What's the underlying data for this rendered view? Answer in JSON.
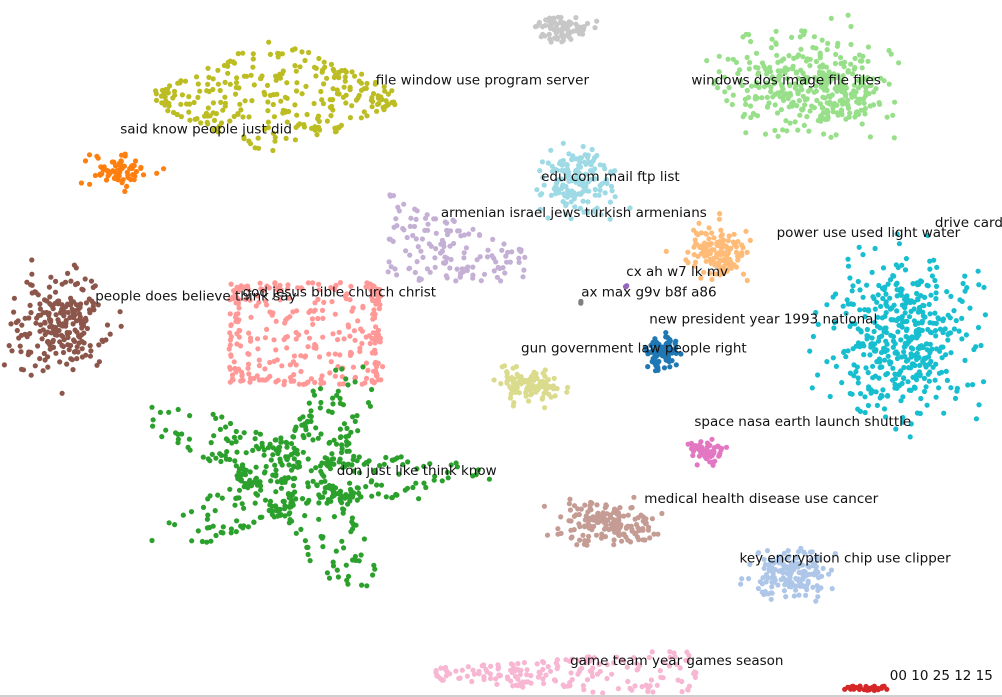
{
  "chart_data": {
    "type": "scatter",
    "title": "",
    "xlabel": "",
    "ylabel": "",
    "grid": false,
    "legend": "none",
    "xlim": [
      0,
      100
    ],
    "ylim": [
      0,
      70
    ],
    "clusters": [
      {
        "label": "",
        "color": "#c7c7c7",
        "center": [
          56.0,
          67.2
        ],
        "spread": [
          4.2,
          2.0
        ],
        "count": 90,
        "shape": "blob"
      },
      {
        "label": "file window use program server",
        "color": "#bcbd22",
        "center": [
          27.5,
          60.2
        ],
        "spread": [
          12.0,
          6.0
        ],
        "count": 290,
        "shape": "diamond"
      },
      {
        "label": "windows dos image file files",
        "color": "#98df8a",
        "center": [
          81.0,
          61.5
        ],
        "spread": [
          13.0,
          7.5
        ],
        "count": 380,
        "shape": "blob"
      },
      {
        "label": "said know people just did",
        "color": "#ff7f0e",
        "center": [
          12.0,
          52.8
        ],
        "spread": [
          5.0,
          2.8
        ],
        "count": 70,
        "shape": "star"
      },
      {
        "label": "edu com mail ftp list",
        "color": "#9edae5",
        "center": [
          57.8,
          51.8
        ],
        "spread": [
          5.5,
          5.0
        ],
        "count": 160,
        "shape": "blob"
      },
      {
        "label": "armenian israel jews turkish armenians",
        "color": "#c5b0d5",
        "center": [
          45.5,
          44.8
        ],
        "spread": [
          7.0,
          4.5
        ],
        "count": 140,
        "shape": "tri"
      },
      {
        "label": "power use used light water",
        "color": "#ffbb78",
        "center": [
          71.5,
          44.5
        ],
        "spread": [
          5.0,
          4.2
        ],
        "count": 140,
        "shape": "blob"
      },
      {
        "label": "drive card",
        "color": "#17becf",
        "center": [
          90.0,
          36.5
        ],
        "spread": [
          11.5,
          12.5
        ],
        "count": 450,
        "shape": "blob"
      },
      {
        "label": "people does believe think say",
        "color": "#8c564b",
        "center": [
          6.0,
          37.5
        ],
        "spread": [
          7.0,
          8.0
        ],
        "count": 230,
        "shape": "blob"
      },
      {
        "label": "god jesus bible church christ",
        "color": "#ff9896",
        "center": [
          30.5,
          36.5
        ],
        "spread": [
          7.5,
          5.0
        ],
        "count": 300,
        "shape": "frame"
      },
      {
        "label": "cx ah w7 lk mv",
        "color": "#9467bd",
        "center": [
          62.5,
          41.3
        ],
        "spread": [
          0.4,
          0.3
        ],
        "count": 3,
        "shape": "blob"
      },
      {
        "label": "ax max g9v b8f a86",
        "color": "#7f7f7f",
        "center": [
          58.0,
          39.7
        ],
        "spread": [
          0.3,
          0.3
        ],
        "count": 2,
        "shape": "blob"
      },
      {
        "label": "new president year 1993 national",
        "color": "#1f77b4",
        "center": [
          66.0,
          34.6
        ],
        "spread": [
          2.5,
          2.8
        ],
        "count": 90,
        "shape": "blob"
      },
      {
        "label": "gun government law people right",
        "color": "#dbdb8d",
        "center": [
          53.0,
          31.5
        ],
        "spread": [
          5.0,
          2.8
        ],
        "count": 110,
        "shape": "blob"
      },
      {
        "label": "space nasa earth launch shuttle",
        "color": "#e377c2",
        "center": [
          70.5,
          24.6
        ],
        "spread": [
          3.0,
          1.8
        ],
        "count": 60,
        "shape": "blob"
      },
      {
        "label": "don just like think know",
        "color": "#2ca02c",
        "center": [
          30.0,
          22.0
        ],
        "spread": [
          19.0,
          12.0
        ],
        "count": 520,
        "shape": "star"
      },
      {
        "label": "medical health disease use cancer",
        "color": "#c49c94",
        "center": [
          60.5,
          17.5
        ],
        "spread": [
          7.5,
          3.2
        ],
        "count": 170,
        "shape": "blob"
      },
      {
        "label": "key encryption chip use clipper",
        "color": "#aec7e8",
        "center": [
          79.0,
          12.5
        ],
        "spread": [
          6.0,
          3.8
        ],
        "count": 170,
        "shape": "blob"
      },
      {
        "label": "game team year games season",
        "color": "#f7b6d2",
        "center": [
          56.5,
          2.3
        ],
        "spread": [
          13.0,
          2.6
        ],
        "count": 180,
        "shape": "wedge"
      },
      {
        "label": "00 10 25 12 15",
        "color": "#d62728",
        "center": [
          86.5,
          0.9
        ],
        "spread": [
          3.0,
          0.4
        ],
        "count": 30,
        "shape": "blob"
      }
    ],
    "labels": [
      {
        "text": "file window use program server",
        "at": [
          37.5,
          61.5
        ]
      },
      {
        "text": "windows dos image file files",
        "at": [
          69.0,
          61.5
        ]
      },
      {
        "text": "said know people just did",
        "at": [
          12.0,
          56.6
        ]
      },
      {
        "text": "edu com mail ftp list",
        "at": [
          54.0,
          51.8
        ]
      },
      {
        "text": "armenian israel jews turkish armenians",
        "at": [
          44.0,
          48.2
        ]
      },
      {
        "text": "power use used light water",
        "at": [
          77.5,
          46.2
        ]
      },
      {
        "text": "drive card",
        "at": [
          93.3,
          47.2
        ]
      },
      {
        "text": "cx ah w7 lk mv",
        "at": [
          62.5,
          42.3
        ]
      },
      {
        "text": "god jesus bible church christ",
        "at": [
          24.2,
          40.2
        ]
      },
      {
        "text": "ax max g9v b8f a86",
        "at": [
          58.0,
          40.2
        ]
      },
      {
        "text": "people does believe think say",
        "at": [
          9.5,
          39.8
        ]
      },
      {
        "text": "new president year 1993 national",
        "at": [
          64.8,
          37.5
        ]
      },
      {
        "text": "gun government law people right",
        "at": [
          52.0,
          34.6
        ]
      },
      {
        "text": "space nasa earth launch shuttle",
        "at": [
          69.3,
          27.2
        ]
      },
      {
        "text": "don just like think know",
        "at": [
          33.6,
          22.3
        ]
      },
      {
        "text": "medical health disease use cancer",
        "at": [
          64.3,
          19.5
        ]
      },
      {
        "text": "key encryption chip use clipper",
        "at": [
          73.8,
          13.5
        ]
      },
      {
        "text": "game team year games season",
        "at": [
          56.9,
          3.2
        ]
      },
      {
        "text": "00 10 25 12 15",
        "at": [
          88.8,
          1.7
        ]
      }
    ]
  }
}
